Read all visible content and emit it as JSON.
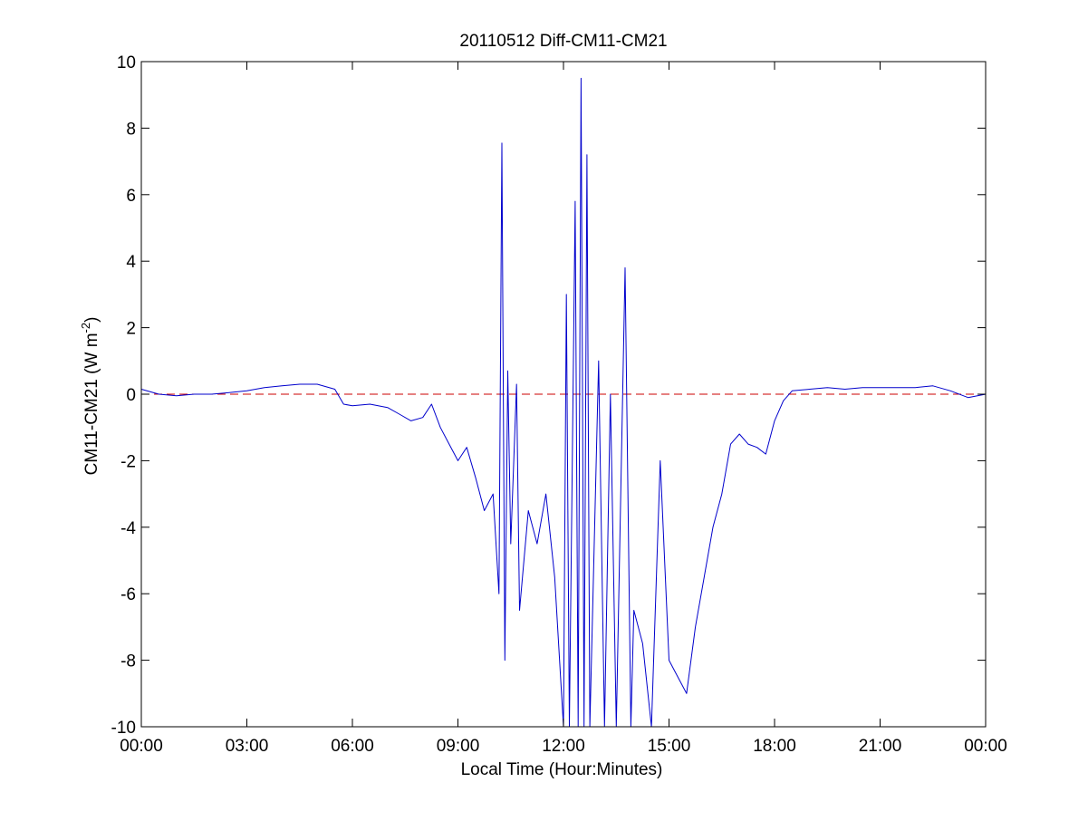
{
  "chart_data": {
    "type": "line",
    "title": "20110512 Diff-CM11-CM21",
    "xlabel": "Local Time (Hour:Minutes)",
    "ylabel_main": "CM11-CM21 (W m",
    "ylabel_sup": "-2",
    "ylabel_close": ")",
    "xlim": [
      "00:00",
      "24:00"
    ],
    "ylim": [
      -10,
      10
    ],
    "x_ticks": [
      "00:00",
      "03:00",
      "06:00",
      "09:00",
      "12:00",
      "15:00",
      "18:00",
      "21:00",
      "00:00"
    ],
    "y_ticks": [
      "-10",
      "-8",
      "-6",
      "-4",
      "-2",
      "0",
      "2",
      "4",
      "6",
      "8",
      "10"
    ],
    "grid": false,
    "reference_line": {
      "y": 0,
      "style": "dashed",
      "color": "#cc0000"
    },
    "series": [
      {
        "color": "#0000cc",
        "points": [
          [
            "00:00",
            0.15
          ],
          [
            "00:30",
            0.0
          ],
          [
            "01:00",
            -0.05
          ],
          [
            "01:30",
            0.0
          ],
          [
            "02:00",
            0.0
          ],
          [
            "02:30",
            0.05
          ],
          [
            "03:00",
            0.1
          ],
          [
            "03:30",
            0.2
          ],
          [
            "04:00",
            0.25
          ],
          [
            "04:30",
            0.3
          ],
          [
            "05:00",
            0.3
          ],
          [
            "05:30",
            0.15
          ],
          [
            "05:45",
            -0.3
          ],
          [
            "06:00",
            -0.35
          ],
          [
            "06:30",
            -0.3
          ],
          [
            "07:00",
            -0.4
          ],
          [
            "07:20",
            -0.6
          ],
          [
            "07:40",
            -0.8
          ],
          [
            "08:00",
            -0.7
          ],
          [
            "08:15",
            -0.3
          ],
          [
            "08:30",
            -1.0
          ],
          [
            "08:45",
            -1.5
          ],
          [
            "09:00",
            -2.0
          ],
          [
            "09:15",
            -1.6
          ],
          [
            "09:30",
            -2.5
          ],
          [
            "09:45",
            -3.5
          ],
          [
            "10:00",
            -3.0
          ],
          [
            "10:10",
            -6.0
          ],
          [
            "10:15",
            7.55
          ],
          [
            "10:20",
            -8.0
          ],
          [
            "10:25",
            0.7
          ],
          [
            "10:30",
            -4.5
          ],
          [
            "10:40",
            0.3
          ],
          [
            "10:45",
            -6.5
          ],
          [
            "11:00",
            -3.5
          ],
          [
            "11:15",
            -4.5
          ],
          [
            "11:30",
            -3.0
          ],
          [
            "11:45",
            -5.5
          ],
          [
            "12:00",
            -10.0
          ],
          [
            "12:05",
            3.0
          ],
          [
            "12:10",
            -10.0
          ],
          [
            "12:20",
            5.8
          ],
          [
            "12:25",
            -10.0
          ],
          [
            "12:30",
            9.5
          ],
          [
            "12:35",
            -10.0
          ],
          [
            "12:40",
            7.2
          ],
          [
            "12:45",
            -10.0
          ],
          [
            "13:00",
            1.0
          ],
          [
            "13:10",
            -10.0
          ],
          [
            "13:20",
            0.0
          ],
          [
            "13:30",
            -10.0
          ],
          [
            "13:45",
            3.8
          ],
          [
            "13:55",
            -10.0
          ],
          [
            "14:00",
            -6.5
          ],
          [
            "14:15",
            -7.5
          ],
          [
            "14:30",
            -10.0
          ],
          [
            "14:45",
            -2.0
          ],
          [
            "15:00",
            -8.0
          ],
          [
            "15:15",
            -8.5
          ],
          [
            "15:30",
            -9.0
          ],
          [
            "15:45",
            -7.0
          ],
          [
            "16:00",
            -5.5
          ],
          [
            "16:15",
            -4.0
          ],
          [
            "16:30",
            -3.0
          ],
          [
            "16:45",
            -1.5
          ],
          [
            "17:00",
            -1.2
          ],
          [
            "17:15",
            -1.5
          ],
          [
            "17:30",
            -1.6
          ],
          [
            "17:45",
            -1.8
          ],
          [
            "18:00",
            -0.8
          ],
          [
            "18:15",
            -0.2
          ],
          [
            "18:30",
            0.1
          ],
          [
            "19:00",
            0.15
          ],
          [
            "19:30",
            0.2
          ],
          [
            "20:00",
            0.15
          ],
          [
            "20:30",
            0.2
          ],
          [
            "21:00",
            0.2
          ],
          [
            "21:30",
            0.2
          ],
          [
            "22:00",
            0.2
          ],
          [
            "22:30",
            0.25
          ],
          [
            "23:00",
            0.1
          ],
          [
            "23:30",
            -0.1
          ],
          [
            "24:00",
            0.0
          ]
        ]
      }
    ]
  }
}
